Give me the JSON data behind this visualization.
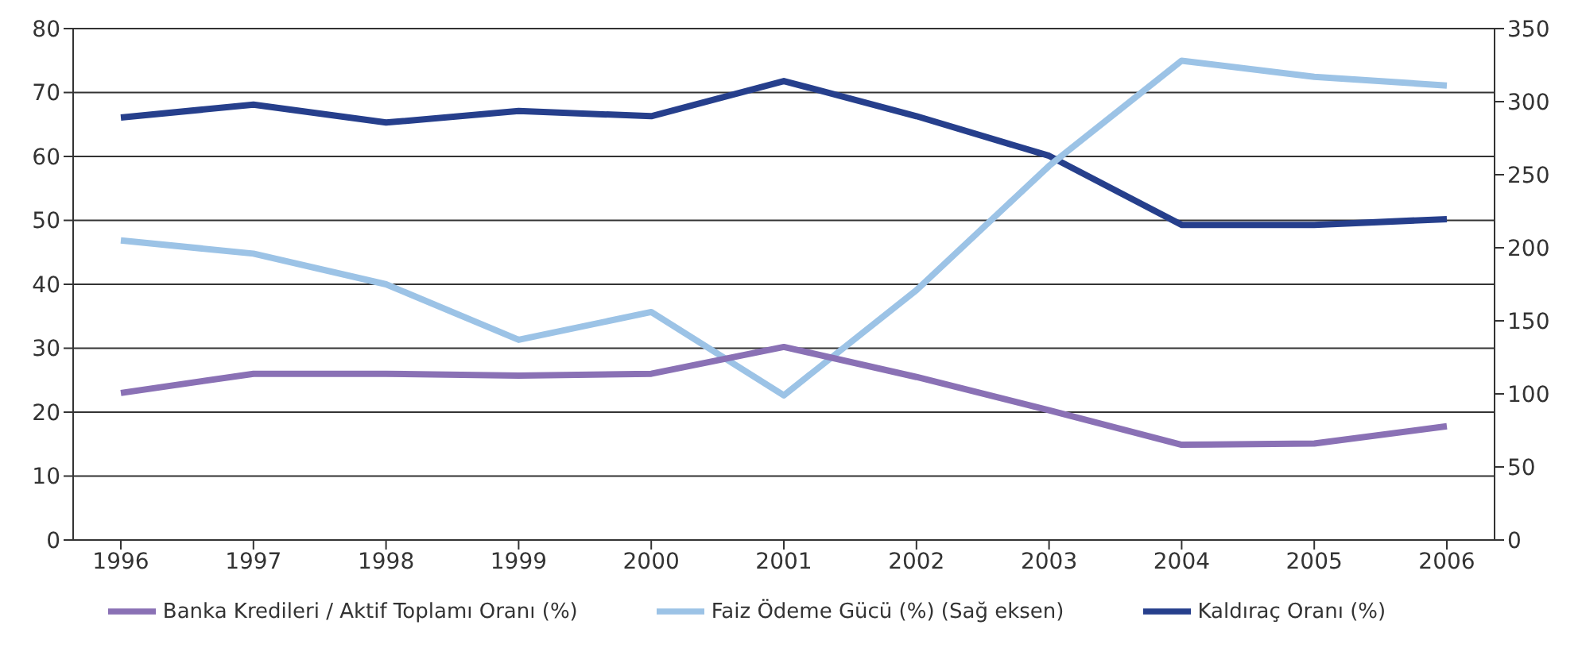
{
  "chart_data": {
    "type": "line",
    "categories": [
      "1996",
      "1997",
      "1998",
      "1999",
      "2000",
      "2001",
      "2002",
      "2003",
      "2004",
      "2005",
      "2006"
    ],
    "series": [
      {
        "name": "Kaldıraç Oranı (%)",
        "color": "#263f8c",
        "values": [
          66.1,
          68.1,
          65.3,
          67.1,
          66.3,
          71.8,
          66.3,
          60.1,
          49.3,
          49.3,
          50.2
        ]
      },
      {
        "name": "Faiz Ödeme Gücü (%) (Sağ eksen)",
        "color": "#9cc3e6",
        "axis": "y2",
        "values": [
          205,
          196,
          175,
          137,
          156,
          99,
          171,
          256,
          328,
          317,
          311
        ]
      },
      {
        "name": "Banka Kredileri / Aktif Toplamı Oranı (%)",
        "color": "#8a71b5",
        "values": [
          23,
          26,
          26,
          25.7,
          26,
          30.2,
          25.5,
          20.3,
          14.9,
          15.1,
          17.8
        ]
      }
    ],
    "ylim": [
      0,
      80
    ],
    "yticks": [
      0,
      10,
      20,
      30,
      40,
      50,
      60,
      70,
      80
    ],
    "y2lim": [
      0,
      350
    ],
    "y2ticks": [
      0,
      50,
      100,
      150,
      200,
      250,
      300,
      350
    ],
    "grid": "y",
    "legend": "bottom",
    "marker": "none",
    "line_style": "solid"
  }
}
